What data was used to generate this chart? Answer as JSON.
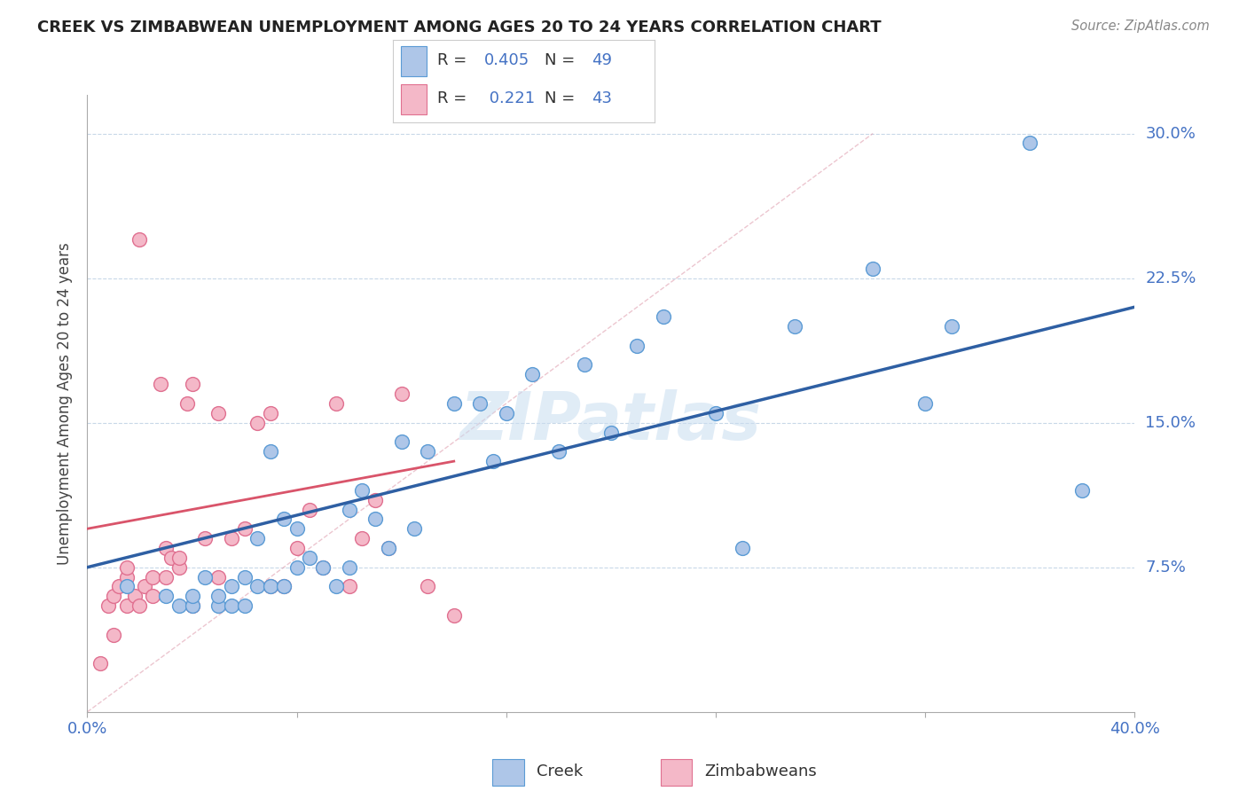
{
  "title": "CREEK VS ZIMBABWEAN UNEMPLOYMENT AMONG AGES 20 TO 24 YEARS CORRELATION CHART",
  "source": "Source: ZipAtlas.com",
  "ylabel": "Unemployment Among Ages 20 to 24 years",
  "creek_color": "#aec6e8",
  "creek_edge_color": "#5b9bd5",
  "zim_color": "#f4b8c8",
  "zim_edge_color": "#e07090",
  "trend_blue": "#2e5fa3",
  "trend_pink": "#d9546a",
  "diag_color": "#e0a0b0",
  "R_creek": 0.405,
  "N_creek": 49,
  "R_zim": 0.221,
  "N_zim": 43,
  "xlim": [
    0.0,
    0.4
  ],
  "ylim": [
    0.0,
    0.32
  ],
  "watermark": "ZIPatlas",
  "watermark_color": "#c8ddf0",
  "grid_color": "#c8d8e8",
  "background_color": "#ffffff",
  "creek_x": [
    0.015,
    0.03,
    0.035,
    0.04,
    0.04,
    0.045,
    0.05,
    0.05,
    0.055,
    0.055,
    0.06,
    0.06,
    0.065,
    0.065,
    0.07,
    0.07,
    0.075,
    0.075,
    0.08,
    0.08,
    0.085,
    0.09,
    0.095,
    0.1,
    0.1,
    0.105,
    0.11,
    0.115,
    0.12,
    0.125,
    0.13,
    0.14,
    0.15,
    0.155,
    0.16,
    0.17,
    0.18,
    0.19,
    0.2,
    0.21,
    0.22,
    0.24,
    0.25,
    0.27,
    0.3,
    0.32,
    0.33,
    0.36,
    0.38
  ],
  "creek_y": [
    0.065,
    0.06,
    0.055,
    0.055,
    0.06,
    0.07,
    0.055,
    0.06,
    0.055,
    0.065,
    0.055,
    0.07,
    0.065,
    0.09,
    0.065,
    0.135,
    0.065,
    0.1,
    0.075,
    0.095,
    0.08,
    0.075,
    0.065,
    0.075,
    0.105,
    0.115,
    0.1,
    0.085,
    0.14,
    0.095,
    0.135,
    0.16,
    0.16,
    0.13,
    0.155,
    0.175,
    0.135,
    0.18,
    0.145,
    0.19,
    0.205,
    0.155,
    0.085,
    0.2,
    0.23,
    0.16,
    0.2,
    0.295,
    0.115
  ],
  "zim_x": [
    0.005,
    0.008,
    0.01,
    0.01,
    0.012,
    0.015,
    0.015,
    0.015,
    0.018,
    0.02,
    0.02,
    0.022,
    0.025,
    0.025,
    0.028,
    0.03,
    0.03,
    0.032,
    0.035,
    0.035,
    0.038,
    0.04,
    0.04,
    0.045,
    0.05,
    0.05,
    0.055,
    0.06,
    0.065,
    0.07,
    0.07,
    0.075,
    0.08,
    0.085,
    0.09,
    0.095,
    0.1,
    0.105,
    0.11,
    0.115,
    0.12,
    0.13,
    0.14
  ],
  "zim_y": [
    0.025,
    0.055,
    0.04,
    0.06,
    0.065,
    0.055,
    0.07,
    0.075,
    0.06,
    0.055,
    0.245,
    0.065,
    0.06,
    0.07,
    0.17,
    0.07,
    0.085,
    0.08,
    0.075,
    0.08,
    0.16,
    0.055,
    0.17,
    0.09,
    0.07,
    0.155,
    0.09,
    0.095,
    0.15,
    0.065,
    0.155,
    0.065,
    0.085,
    0.105,
    0.075,
    0.16,
    0.065,
    0.09,
    0.11,
    0.085,
    0.165,
    0.065,
    0.05
  ]
}
